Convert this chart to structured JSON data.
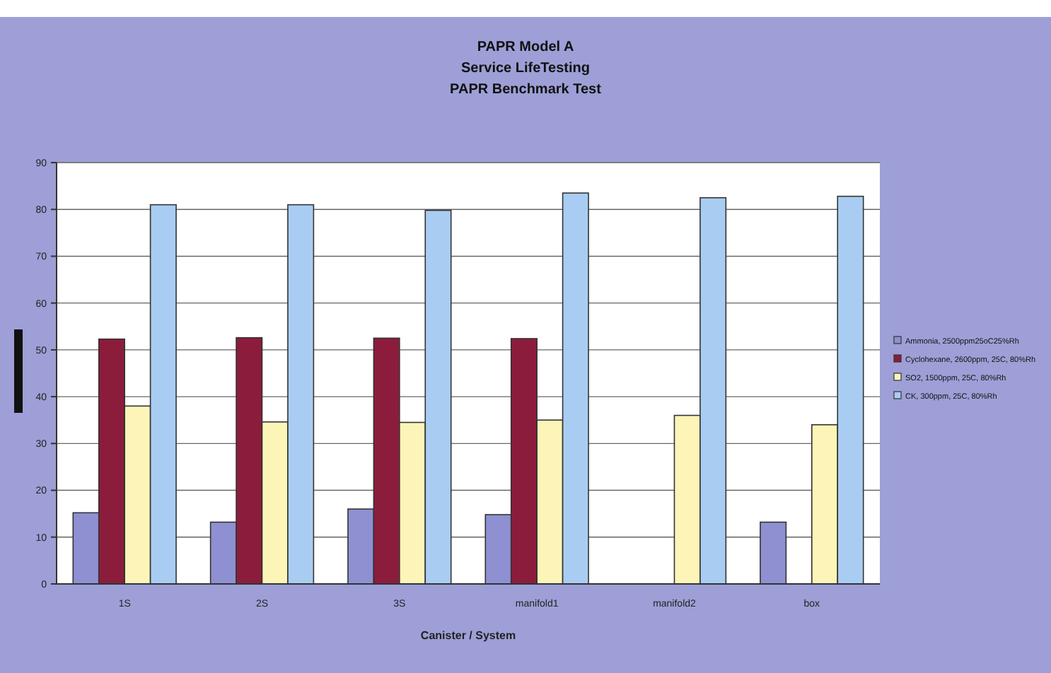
{
  "chart_data": {
    "type": "bar",
    "title": "PAPR Model A\nService LifeTesting\nPAPR Benchmark Test",
    "xlabel": "Canister / System",
    "categories": [
      "1S",
      "2S",
      "3S",
      "manifold1",
      "manifold2",
      "box"
    ],
    "series": [
      {
        "name": "Ammonia, 2500ppm25oC25%Rh",
        "color": "#8f90d2",
        "values": [
          15.2,
          13.2,
          16,
          14.8,
          null,
          13.2
        ]
      },
      {
        "name": "Cyclohexane, 2600ppm, 25C, 80%Rh",
        "color": "#8c1c3c",
        "values": [
          52.3,
          52.6,
          52.5,
          52.4,
          null,
          null
        ]
      },
      {
        "name": "SO2, 1500ppm, 25C, 80%Rh",
        "color": "#fdf5b8",
        "values": [
          38,
          34.6,
          34.5,
          35,
          36,
          34
        ]
      },
      {
        "name": "CK, 300ppm, 25C, 80%Rh",
        "color": "#a9cdf2",
        "values": [
          81,
          81,
          79.8,
          83.5,
          82.5,
          82.8
        ]
      }
    ],
    "ylim": [
      0,
      90
    ],
    "yticks": [
      0,
      10,
      20,
      30,
      40,
      50,
      60,
      70,
      80,
      90
    ],
    "grid": "y",
    "legend": "right"
  }
}
